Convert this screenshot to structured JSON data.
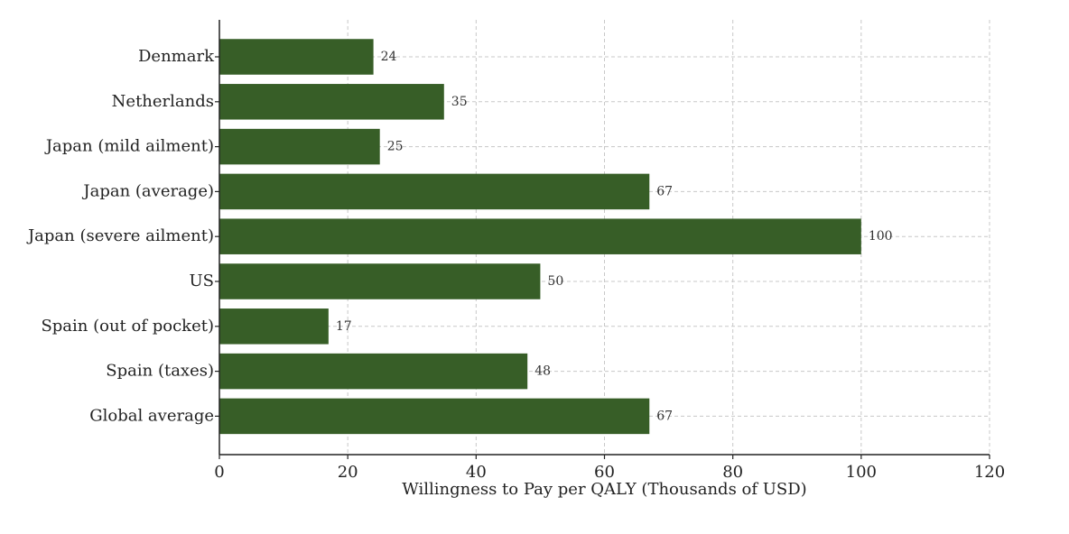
{
  "chart_data": {
    "type": "bar",
    "orientation": "horizontal",
    "categories": [
      "Denmark",
      "Netherlands",
      "Japan (mild ailment)",
      "Japan (average)",
      "Japan (severe ailment)",
      "US",
      "Spain (out of pocket)",
      "Spain (taxes)",
      "Global average"
    ],
    "values": [
      24,
      35,
      25,
      67,
      100,
      50,
      17,
      48,
      67
    ],
    "value_labels": [
      "24",
      "35",
      "25",
      "67",
      "100",
      "50",
      "17",
      "48",
      "67"
    ],
    "title": "",
    "xlabel": "Willingness to Pay per QALY (Thousands of USD)",
    "ylabel": "",
    "xlim": [
      0,
      120
    ],
    "xticks": [
      0,
      20,
      40,
      60,
      80,
      100,
      120
    ],
    "xtick_labels": [
      "0",
      "20",
      "40",
      "60",
      "80",
      "100",
      "120"
    ],
    "grid": true,
    "bar_color": "#375e27"
  }
}
